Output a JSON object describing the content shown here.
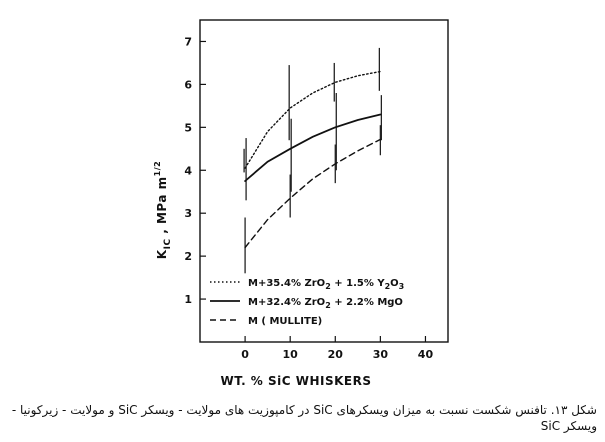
{
  "chart_data": {
    "type": "line",
    "xlabel": "WT. % SiC WHISKERS",
    "ylabel": "K_IC , MPa m^1/2",
    "ylabel_parts": {
      "k": "K",
      "ic": "IC",
      "rest": " , MPa  m",
      "exp": "1/2"
    },
    "xlim": [
      -10,
      45
    ],
    "ylim": [
      0,
      7.5
    ],
    "x_ticks": [
      0,
      10,
      20,
      30,
      40
    ],
    "y_ticks": [
      1,
      2,
      3,
      4,
      5,
      6,
      7
    ],
    "legend_position": "lower-left",
    "series": [
      {
        "name": "M+35.4% ZrO2 + 1.5% Y2O3",
        "style": "dotted",
        "legend_parts": [
          "M+35.4% ZrO",
          "2",
          " + 1.5% Y",
          "2",
          "O",
          "3"
        ],
        "x": [
          0,
          5,
          10,
          15,
          20,
          25,
          30
        ],
        "y": [
          4.05,
          4.9,
          5.45,
          5.8,
          6.05,
          6.2,
          6.3
        ]
      },
      {
        "name": "M+32.4% ZrO2 + 2.2% MgO",
        "style": "solid",
        "legend_parts": [
          "M+32.4% ZrO",
          "2",
          " + 2.2% MgO",
          "",
          "",
          ""
        ],
        "x": [
          0,
          5,
          10,
          15,
          20,
          25,
          30
        ],
        "y": [
          3.75,
          4.2,
          4.5,
          4.78,
          5.0,
          5.17,
          5.3
        ]
      },
      {
        "name": "M (MULLITE)",
        "style": "dashed",
        "legend_parts": [
          "M ( MULLITE)",
          "",
          "",
          "",
          "",
          ""
        ],
        "x": [
          0,
          5,
          10,
          15,
          20,
          25,
          30
        ],
        "y": [
          2.2,
          2.85,
          3.35,
          3.8,
          4.15,
          4.45,
          4.72
        ]
      }
    ],
    "error_bars": [
      {
        "x": 0,
        "low": 1.6,
        "high": 2.9
      },
      {
        "x": 0,
        "low": 3.3,
        "high": 4.75
      },
      {
        "x": 0,
        "low": 3.95,
        "high": 4.5
      },
      {
        "x": 10,
        "low": 2.9,
        "high": 3.9
      },
      {
        "x": 10,
        "low": 3.5,
        "high": 5.2
      },
      {
        "x": 10,
        "low": 4.7,
        "high": 6.45
      },
      {
        "x": 20,
        "low": 3.7,
        "high": 4.6
      },
      {
        "x": 20,
        "low": 4.0,
        "high": 5.8
      },
      {
        "x": 20,
        "low": 5.6,
        "high": 6.5
      },
      {
        "x": 30,
        "low": 4.35,
        "high": 5.05
      },
      {
        "x": 30,
        "low": 4.7,
        "high": 5.75
      },
      {
        "x": 30,
        "low": 5.85,
        "high": 6.85
      }
    ]
  },
  "caption": "شکل ۱۳. تافنس شکست نسبت به میزان ویسکرهای SiC در کامپوزیت های مولایت - ویسکر SiC و مولایت - زیرکونیا - ویسکر SiC"
}
